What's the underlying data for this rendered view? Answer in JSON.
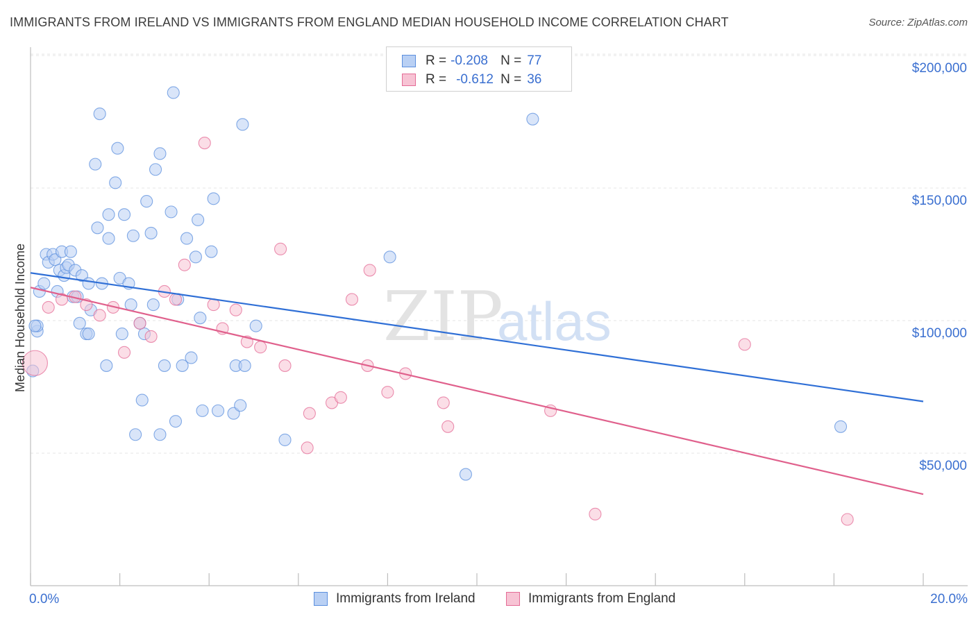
{
  "title": "IMMIGRANTS FROM IRELAND VS IMMIGRANTS FROM ENGLAND MEDIAN HOUSEHOLD INCOME CORRELATION CHART",
  "source": "Source: ZipAtlas.com",
  "watermark": {
    "zip": "ZIP",
    "atlas": "atlas"
  },
  "legend": {
    "r_label": "R =",
    "n_label": "N =",
    "rows": [
      {
        "r": "-0.208",
        "n": "77"
      },
      {
        "r": "-0.612",
        "n": "36"
      }
    ]
  },
  "chart_data": {
    "type": "scatter",
    "title": "IMMIGRANTS FROM IRELAND VS IMMIGRANTS FROM ENGLAND MEDIAN HOUSEHOLD INCOME CORRELATION CHART",
    "xlabel": "",
    "ylabel": "Median Household Income",
    "xlim": [
      0,
      20
    ],
    "ylim": [
      0,
      210000
    ],
    "x_tick_labels": [
      "0.0%",
      "20.0%"
    ],
    "y_ticks": [
      50000,
      100000,
      150000,
      200000
    ],
    "y_tick_labels": [
      "$50,000",
      "$100,000",
      "$150,000",
      "$200,000"
    ],
    "grid": true,
    "colors": {
      "ireland": "#5b8fde",
      "ireland_fill": "#b9d0f4",
      "england": "#e46b96",
      "england_fill": "#f7c3d4",
      "axis_text": "#3a6fd0"
    },
    "series": [
      {
        "name": "Immigrants from Ireland",
        "r": -0.208,
        "n": 77,
        "trend": {
          "x": [
            0,
            20
          ],
          "y": [
            118000,
            69500
          ]
        },
        "points": [
          [
            0.05,
            81000
          ],
          [
            0.15,
            96000
          ],
          [
            0.15,
            98000
          ],
          [
            0.2,
            111000
          ],
          [
            0.3,
            114000
          ],
          [
            0.35,
            125000
          ],
          [
            0.4,
            122000
          ],
          [
            0.5,
            125000
          ],
          [
            0.55,
            123000
          ],
          [
            0.6,
            111000
          ],
          [
            0.65,
            119000
          ],
          [
            0.7,
            126000
          ],
          [
            0.75,
            117000
          ],
          [
            0.8,
            120000
          ],
          [
            0.85,
            121000
          ],
          [
            0.9,
            126000
          ],
          [
            0.95,
            109000
          ],
          [
            1.0,
            119000
          ],
          [
            1.1,
            99000
          ],
          [
            1.15,
            117000
          ],
          [
            1.25,
            95000
          ],
          [
            1.3,
            95000
          ],
          [
            1.3,
            114000
          ],
          [
            1.35,
            104000
          ],
          [
            1.45,
            159000
          ],
          [
            1.5,
            135000
          ],
          [
            1.55,
            178000
          ],
          [
            1.6,
            114000
          ],
          [
            1.7,
            83000
          ],
          [
            1.75,
            140000
          ],
          [
            1.75,
            131000
          ],
          [
            1.9,
            152000
          ],
          [
            1.95,
            165000
          ],
          [
            2.0,
            116000
          ],
          [
            2.05,
            95000
          ],
          [
            2.1,
            140000
          ],
          [
            2.2,
            114000
          ],
          [
            2.25,
            106000
          ],
          [
            2.3,
            132000
          ],
          [
            2.35,
            57000
          ],
          [
            2.45,
            99000
          ],
          [
            2.5,
            70000
          ],
          [
            2.55,
            95000
          ],
          [
            2.6,
            145000
          ],
          [
            2.7,
            133000
          ],
          [
            2.75,
            106000
          ],
          [
            2.8,
            157000
          ],
          [
            2.9,
            163000
          ],
          [
            2.9,
            57000
          ],
          [
            3.0,
            83000
          ],
          [
            3.15,
            141000
          ],
          [
            3.2,
            186000
          ],
          [
            3.25,
            62000
          ],
          [
            3.3,
            108000
          ],
          [
            3.4,
            83000
          ],
          [
            3.5,
            131000
          ],
          [
            3.6,
            86000
          ],
          [
            3.7,
            124000
          ],
          [
            3.75,
            138000
          ],
          [
            3.8,
            101000
          ],
          [
            3.85,
            66000
          ],
          [
            4.05,
            126000
          ],
          [
            4.1,
            146000
          ],
          [
            4.2,
            66000
          ],
          [
            4.55,
            65000
          ],
          [
            4.6,
            83000
          ],
          [
            4.7,
            68000
          ],
          [
            4.75,
            174000
          ],
          [
            4.8,
            83000
          ],
          [
            5.05,
            98000
          ],
          [
            5.7,
            55000
          ],
          [
            8.05,
            124000
          ],
          [
            9.75,
            42000
          ],
          [
            11.25,
            176000
          ],
          [
            18.15,
            60000
          ],
          [
            0.1,
            98000
          ],
          [
            1.05,
            109000
          ]
        ]
      },
      {
        "name": "Immigrants from England",
        "r": -0.612,
        "n": 36,
        "trend": {
          "x": [
            0,
            20
          ],
          "y": [
            112500,
            34500
          ]
        },
        "points": [
          [
            0.1,
            84000
          ],
          [
            0.4,
            105000
          ],
          [
            0.7,
            108000
          ],
          [
            1.0,
            109000
          ],
          [
            1.25,
            106000
          ],
          [
            1.55,
            102000
          ],
          [
            1.85,
            105000
          ],
          [
            2.1,
            88000
          ],
          [
            2.45,
            99000
          ],
          [
            2.7,
            94000
          ],
          [
            3.0,
            111000
          ],
          [
            3.25,
            108000
          ],
          [
            3.45,
            121000
          ],
          [
            3.9,
            167000
          ],
          [
            4.1,
            106000
          ],
          [
            4.3,
            97000
          ],
          [
            4.6,
            104000
          ],
          [
            4.85,
            92000
          ],
          [
            5.15,
            90000
          ],
          [
            5.6,
            127000
          ],
          [
            5.7,
            83000
          ],
          [
            6.2,
            52000
          ],
          [
            6.25,
            65000
          ],
          [
            6.75,
            69000
          ],
          [
            6.95,
            71000
          ],
          [
            7.2,
            108000
          ],
          [
            7.55,
            83000
          ],
          [
            7.6,
            119000
          ],
          [
            8.0,
            73000
          ],
          [
            8.4,
            80000
          ],
          [
            9.25,
            69000
          ],
          [
            9.35,
            60000
          ],
          [
            11.65,
            66000
          ],
          [
            12.65,
            27000
          ],
          [
            16.0,
            91000
          ],
          [
            18.3,
            25000
          ]
        ]
      }
    ]
  },
  "bottom_legend": [
    "Immigrants from Ireland",
    "Immigrants from England"
  ]
}
